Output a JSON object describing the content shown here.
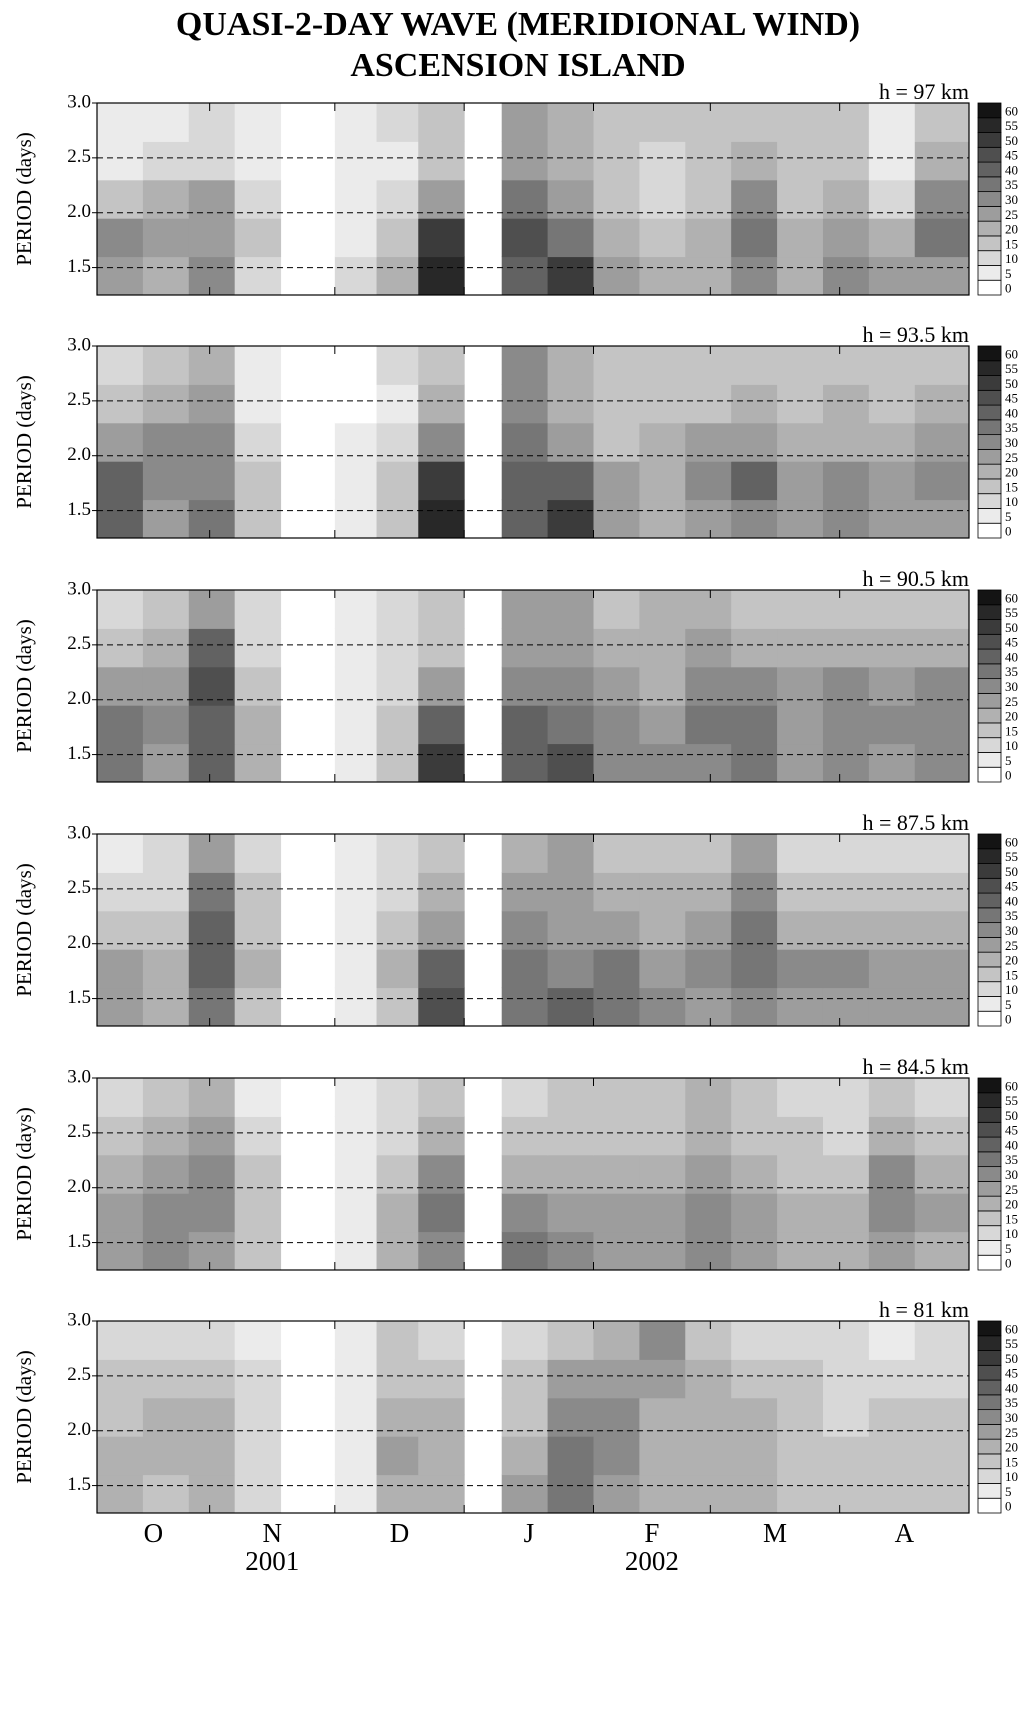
{
  "chart_data": {
    "type": "contour",
    "title": "QUASI-2-DAY WAVE  (MERIDIONAL WIND)",
    "subtitle": "ASCENSION ISLAND",
    "y_label": "PERIOD  (days)",
    "xlim": [
      4,
      213
    ],
    "ylim": [
      1.25,
      3.0
    ],
    "yticks": [
      {
        "value": 1.5,
        "label": "1.5"
      },
      {
        "value": 2.0,
        "label": "2.0"
      },
      {
        "value": 2.5,
        "label": "2.5"
      },
      {
        "value": 3.0,
        "label": "3.0"
      }
    ],
    "categories": [
      "O",
      "N",
      "D",
      "J",
      "F",
      "M",
      "A"
    ],
    "month_bounds": [
      31,
      61,
      92,
      123,
      151,
      182
    ],
    "years": [
      "2001",
      "2002"
    ],
    "levels": [
      0,
      5,
      10,
      15,
      20,
      25,
      30,
      35,
      40,
      45,
      50,
      55,
      60
    ],
    "x_edges": [
      4,
      15,
      26,
      37,
      48,
      61,
      71,
      81,
      92,
      101,
      112,
      123,
      134,
      145,
      156,
      167,
      178,
      189,
      200,
      213
    ],
    "y_edges": [
      1.25,
      1.6,
      1.95,
      2.3,
      2.65,
      3.0
    ],
    "panels": [
      {
        "label": "h = 97 km",
        "z": [
          [
            25,
            20,
            30,
            10,
            null,
            10,
            20,
            55,
            null,
            40,
            50,
            25,
            20,
            20,
            30,
            20,
            30,
            25,
            25
          ],
          [
            30,
            25,
            25,
            15,
            null,
            5,
            15,
            50,
            null,
            45,
            35,
            20,
            15,
            20,
            35,
            20,
            25,
            20,
            35
          ],
          [
            15,
            20,
            25,
            10,
            null,
            5,
            10,
            25,
            null,
            35,
            25,
            15,
            10,
            15,
            30,
            15,
            20,
            10,
            30
          ],
          [
            5,
            10,
            10,
            5,
            null,
            5,
            5,
            15,
            null,
            25,
            20,
            15,
            10,
            15,
            20,
            15,
            15,
            5,
            20
          ],
          [
            5,
            5,
            10,
            5,
            null,
            5,
            10,
            15,
            null,
            25,
            20,
            15,
            15,
            15,
            15,
            15,
            15,
            5,
            15
          ]
        ]
      },
      {
        "label": "h = 93.5 km",
        "z": [
          [
            40,
            25,
            35,
            15,
            null,
            5,
            15,
            55,
            null,
            40,
            50,
            25,
            20,
            25,
            30,
            25,
            30,
            25,
            25
          ],
          [
            40,
            30,
            30,
            15,
            null,
            5,
            15,
            50,
            null,
            40,
            40,
            25,
            20,
            30,
            40,
            25,
            30,
            25,
            30
          ],
          [
            25,
            30,
            30,
            10,
            null,
            5,
            10,
            30,
            null,
            35,
            25,
            15,
            20,
            25,
            25,
            20,
            20,
            20,
            25
          ],
          [
            15,
            20,
            25,
            5,
            null,
            0,
            5,
            20,
            null,
            30,
            20,
            15,
            15,
            15,
            20,
            15,
            20,
            15,
            20
          ],
          [
            10,
            15,
            20,
            5,
            null,
            0,
            10,
            15,
            null,
            30,
            20,
            15,
            15,
            15,
            15,
            15,
            15,
            15,
            15
          ]
        ]
      },
      {
        "label": "h = 90.5 km",
        "z": [
          [
            35,
            25,
            40,
            20,
            null,
            5,
            15,
            50,
            null,
            40,
            45,
            30,
            30,
            30,
            35,
            25,
            30,
            25,
            30
          ],
          [
            35,
            30,
            40,
            20,
            null,
            5,
            15,
            40,
            null,
            40,
            35,
            30,
            25,
            35,
            35,
            25,
            30,
            30,
            30
          ],
          [
            25,
            25,
            45,
            15,
            null,
            5,
            10,
            25,
            null,
            30,
            30,
            25,
            20,
            30,
            30,
            25,
            30,
            25,
            30
          ],
          [
            15,
            20,
            40,
            10,
            null,
            5,
            10,
            15,
            null,
            25,
            25,
            20,
            20,
            25,
            20,
            20,
            20,
            20,
            20
          ],
          [
            10,
            15,
            25,
            10,
            null,
            5,
            10,
            15,
            null,
            25,
            25,
            15,
            20,
            20,
            15,
            15,
            15,
            15,
            15
          ]
        ]
      },
      {
        "label": "h = 87.5 km",
        "z": [
          [
            25,
            20,
            35,
            15,
            null,
            5,
            15,
            45,
            null,
            35,
            40,
            35,
            30,
            25,
            30,
            25,
            25,
            25,
            25
          ],
          [
            25,
            20,
            40,
            20,
            null,
            5,
            20,
            40,
            null,
            35,
            30,
            35,
            25,
            30,
            35,
            30,
            30,
            25,
            25
          ],
          [
            15,
            15,
            40,
            15,
            null,
            5,
            15,
            25,
            null,
            30,
            25,
            25,
            20,
            25,
            35,
            20,
            20,
            20,
            20
          ],
          [
            10,
            10,
            35,
            15,
            null,
            5,
            10,
            20,
            null,
            25,
            25,
            20,
            20,
            20,
            30,
            15,
            15,
            15,
            15
          ],
          [
            5,
            10,
            25,
            10,
            null,
            5,
            10,
            15,
            null,
            20,
            25,
            15,
            15,
            15,
            25,
            10,
            10,
            10,
            10
          ]
        ]
      },
      {
        "label": "h = 84.5 km",
        "z": [
          [
            25,
            30,
            25,
            15,
            null,
            5,
            20,
            30,
            null,
            35,
            30,
            25,
            25,
            30,
            25,
            20,
            20,
            25,
            20
          ],
          [
            25,
            30,
            30,
            15,
            null,
            5,
            20,
            35,
            null,
            30,
            25,
            25,
            25,
            30,
            25,
            20,
            20,
            30,
            25
          ],
          [
            20,
            25,
            30,
            15,
            null,
            5,
            15,
            30,
            null,
            20,
            20,
            20,
            20,
            25,
            20,
            15,
            15,
            30,
            20
          ],
          [
            15,
            20,
            25,
            10,
            null,
            5,
            10,
            20,
            null,
            15,
            15,
            15,
            15,
            20,
            15,
            15,
            10,
            20,
            15
          ],
          [
            10,
            15,
            20,
            5,
            null,
            5,
            10,
            15,
            null,
            10,
            15,
            15,
            15,
            20,
            15,
            10,
            10,
            15,
            10
          ]
        ]
      },
      {
        "label": "h = 81 km",
        "z": [
          [
            20,
            15,
            20,
            10,
            null,
            5,
            20,
            20,
            null,
            25,
            35,
            25,
            20,
            20,
            20,
            15,
            15,
            15,
            15
          ],
          [
            20,
            20,
            20,
            10,
            null,
            5,
            25,
            20,
            null,
            20,
            35,
            30,
            20,
            20,
            20,
            15,
            15,
            15,
            15
          ],
          [
            15,
            20,
            20,
            10,
            null,
            5,
            20,
            20,
            null,
            15,
            30,
            30,
            20,
            20,
            20,
            15,
            10,
            15,
            15
          ],
          [
            15,
            15,
            15,
            10,
            null,
            5,
            15,
            15,
            null,
            15,
            25,
            25,
            25,
            20,
            15,
            15,
            10,
            10,
            10
          ],
          [
            10,
            10,
            10,
            5,
            null,
            5,
            15,
            10,
            null,
            10,
            15,
            20,
            30,
            15,
            10,
            10,
            10,
            5,
            10
          ]
        ]
      }
    ]
  }
}
